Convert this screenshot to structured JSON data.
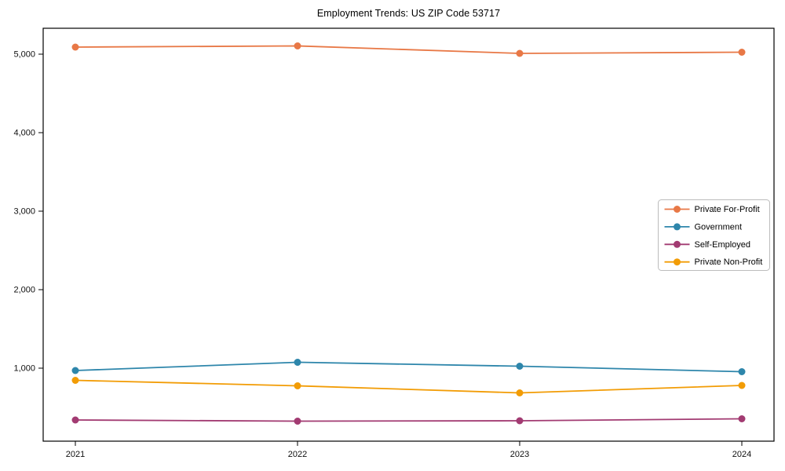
{
  "chart_data": {
    "type": "line",
    "title": "Employment Trends: US ZIP Code 53717",
    "xlabel": "",
    "ylabel": "",
    "categories": [
      "2021",
      "2022",
      "2023",
      "2024"
    ],
    "x": [
      2021,
      2022,
      2023,
      2024
    ],
    "series": [
      {
        "name": "Private For-Profit",
        "color": "#E87846",
        "values": [
          5090,
          5105,
          5010,
          5025
        ]
      },
      {
        "name": "Government",
        "color": "#2E86AB",
        "values": [
          970,
          1075,
          1025,
          955
        ]
      },
      {
        "name": "Self-Employed",
        "color": "#A23B72",
        "values": [
          340,
          325,
          330,
          355
        ]
      },
      {
        "name": "Private Non-Profit",
        "color": "#F29C05",
        "values": [
          845,
          775,
          685,
          780
        ]
      }
    ],
    "ylim": [
      70,
      5330
    ],
    "yticks": [
      1000,
      2000,
      3000,
      4000,
      5000
    ],
    "ytick_labels": [
      "1,000",
      "2,000",
      "3,000",
      "4,000",
      "5,000"
    ],
    "grid": false,
    "legend_position": "center right",
    "axis_color": "#000000",
    "legend_border_color": "#bcbcbc",
    "background_color": "#ffffff"
  }
}
